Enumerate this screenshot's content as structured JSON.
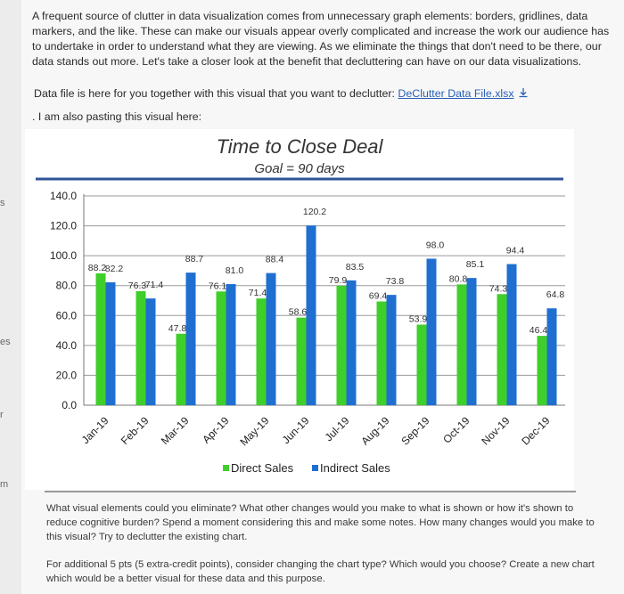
{
  "sidebar": {
    "items": [
      "s",
      "es",
      "r",
      "m"
    ]
  },
  "intro_text": "A frequent source of clutter in data visualization comes from unnecessary graph elements: borders, gridlines, data markers, and the like. These can make our visuals appear overly complicated and increase the work our audience has to undertake in order to understand what they are viewing. As we eliminate the things that don't need to be there, our data stands out more. Let's take a closer look at the benefit that decluttering can have on our data visualizations.",
  "file_line": {
    "prefix": "Data file is here for you together with this visual that you want to declutter: ",
    "link": "DeClutter Data File.xlsx",
    "icon": "download-icon"
  },
  "paste_line": ". I am also pasting this visual here:",
  "chart_data": {
    "type": "bar",
    "title": "Time to Close Deal",
    "subtitle": "Goal = 90 days",
    "categories": [
      "Jan-19",
      "Feb-19",
      "Mar-19",
      "Apr-19",
      "May-19",
      "Jun-19",
      "Jul-19",
      "Aug-19",
      "Sep-19",
      "Oct-19",
      "Nov-19",
      "Dec-19"
    ],
    "series": [
      {
        "name": "Direct Sales",
        "color": "#3fcf2a",
        "values": [
          88.2,
          76.3,
          47.8,
          76.1,
          71.4,
          58.6,
          79.9,
          69.4,
          53.9,
          80.8,
          74.3,
          46.4
        ]
      },
      {
        "name": "Indirect Sales",
        "color": "#1f6fd1",
        "values": [
          82.2,
          71.4,
          88.7,
          81.0,
          88.4,
          120.2,
          83.5,
          73.8,
          98.0,
          85.1,
          94.4,
          64.8
        ]
      }
    ],
    "data_labels": [
      [
        "88.2",
        "76.3",
        "47.8",
        "76.1",
        "71.4",
        "58.6",
        "79.9",
        "69.4",
        "53.9",
        "80.8",
        "74.3",
        "46.4"
      ],
      [
        "82.2",
        "71.4",
        "88.7",
        "81.0",
        "88.4",
        "120.2",
        "83.5",
        "73.8",
        "98.0",
        "85.1",
        "94.4",
        "64.8"
      ]
    ],
    "y_ticks": [
      "0.0",
      "20.0",
      "40.0",
      "60.0",
      "80.0",
      "100.0",
      "120.0",
      "140.0"
    ],
    "ylim": [
      0,
      140
    ],
    "grid": true,
    "legend": "bottom",
    "accent_color": "#2f5597"
  },
  "question1": "What visual elements could you eliminate? What other changes would you make to what is shown or how it's shown to reduce cognitive burden? Spend a moment considering this and make some notes. How many changes would you make to this visual? Try to declutter the existing chart.",
  "question2": "For additional 5 pts (5 extra-credit points), consider changing the chart type? Which would you choose? Create a new chart which would be a better visual for these data and this purpose."
}
